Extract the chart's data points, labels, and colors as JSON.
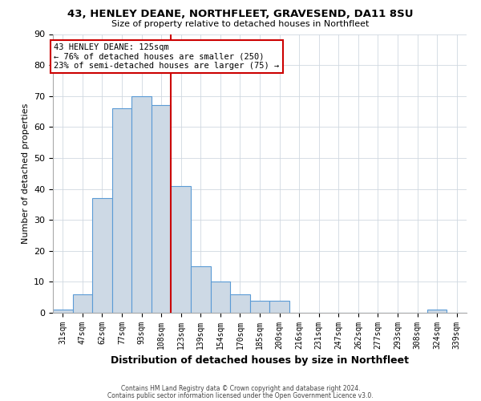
{
  "title": "43, HENLEY DEANE, NORTHFLEET, GRAVESEND, DA11 8SU",
  "subtitle": "Size of property relative to detached houses in Northfleet",
  "xlabel": "Distribution of detached houses by size in Northfleet",
  "ylabel": "Number of detached properties",
  "bin_labels": [
    "31sqm",
    "47sqm",
    "62sqm",
    "77sqm",
    "93sqm",
    "108sqm",
    "123sqm",
    "139sqm",
    "154sqm",
    "170sqm",
    "185sqm",
    "200sqm",
    "216sqm",
    "231sqm",
    "247sqm",
    "262sqm",
    "277sqm",
    "293sqm",
    "308sqm",
    "324sqm",
    "339sqm"
  ],
  "bar_heights": [
    1,
    6,
    37,
    66,
    70,
    67,
    41,
    15,
    10,
    6,
    4,
    4,
    0,
    0,
    0,
    0,
    0,
    0,
    0,
    1,
    0
  ],
  "bar_color": "#cdd9e5",
  "bar_edge_color": "#5b9bd5",
  "highlight_bar_index": 6,
  "highlight_line_color": "#cc0000",
  "ylim": [
    0,
    90
  ],
  "yticks": [
    0,
    10,
    20,
    30,
    40,
    50,
    60,
    70,
    80,
    90
  ],
  "annotation_title": "43 HENLEY DEANE: 125sqm",
  "annotation_line1": "← 76% of detached houses are smaller (250)",
  "annotation_line2": "23% of semi-detached houses are larger (75) →",
  "annotation_box_color": "#ffffff",
  "annotation_box_edge": "#cc0000",
  "footnote1": "Contains HM Land Registry data © Crown copyright and database right 2024.",
  "footnote2": "Contains public sector information licensed under the Open Government Licence v3.0.",
  "background_color": "#ffffff",
  "grid_color": "#d0d8e0"
}
